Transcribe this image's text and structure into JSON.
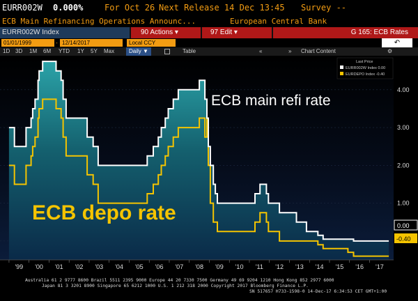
{
  "header": {
    "ticker": "EURR002W",
    "change": "0.000%",
    "date_text": "For Oct 26",
    "next_release": "Next Release 14 Dec 13:45",
    "survey": "Survey --",
    "description": "ECB Main Refinancing Operations Announc...",
    "source": "European Central Bank"
  },
  "toolbar": {
    "index_label": "EURR002W Index",
    "actions_label": "90 Actions ▾",
    "edit_label": "97 Edit ▾",
    "g_label": "G 165: ECB Rates",
    "start_date": "01/01/1999",
    "end_date": "12/14/2017",
    "currency": "Local CCY",
    "back_icon": "↶",
    "ranges": [
      "1D",
      "3D",
      "1M",
      "6M",
      "YTD",
      "1Y",
      "5Y",
      "Max"
    ],
    "frequency": "Daily ▼",
    "table_label": "Table",
    "chart_content_label": "Chart Content",
    "icons": [
      "bar-chart-icon",
      "double-left-icon",
      "double-right-icon",
      "gear-icon"
    ]
  },
  "legend": {
    "title": "Last Price",
    "items": [
      {
        "label": "EURR002W Index  0.00",
        "color": "#ffffff"
      },
      {
        "label": "EURDEPO Index  -0.40",
        "color": "#f5c400"
      }
    ]
  },
  "chart_data": {
    "type": "line",
    "x_ticks": [
      "'99",
      "'00",
      "'01",
      "'02",
      "'03",
      "'04",
      "'05",
      "'06",
      "'07",
      "'08",
      "'09",
      "'10",
      "'11",
      "'12",
      "'13",
      "'14",
      "'15",
      "'16",
      "'17"
    ],
    "y_ticks": [
      "4.00",
      "3.00",
      "2.00",
      "1.00",
      "0.00"
    ],
    "ylim": [
      -0.5,
      4.9
    ],
    "annotations": [
      "ECB main refi rate",
      "ECB depo rate"
    ],
    "last_values": [
      "0.00",
      "-0.40"
    ],
    "series": [
      {
        "name": "EURR002W Index",
        "color": "#ffffff",
        "points": [
          [
            1999.0,
            3.0
          ],
          [
            1999.27,
            2.5
          ],
          [
            1999.85,
            3.0
          ],
          [
            2000.1,
            3.25
          ],
          [
            2000.18,
            3.5
          ],
          [
            2000.3,
            3.75
          ],
          [
            2000.45,
            4.25
          ],
          [
            2000.5,
            4.5
          ],
          [
            2000.68,
            4.75
          ],
          [
            2001.35,
            4.5
          ],
          [
            2001.6,
            4.25
          ],
          [
            2001.7,
            3.75
          ],
          [
            2001.85,
            3.25
          ],
          [
            2002.9,
            2.75
          ],
          [
            2003.2,
            2.5
          ],
          [
            2003.45,
            2.0
          ],
          [
            2005.9,
            2.25
          ],
          [
            2006.2,
            2.5
          ],
          [
            2006.45,
            2.75
          ],
          [
            2006.6,
            3.0
          ],
          [
            2006.8,
            3.25
          ],
          [
            2006.95,
            3.5
          ],
          [
            2007.2,
            3.75
          ],
          [
            2007.45,
            4.0
          ],
          [
            2008.5,
            4.25
          ],
          [
            2008.78,
            3.75
          ],
          [
            2008.88,
            3.25
          ],
          [
            2008.95,
            2.5
          ],
          [
            2009.05,
            2.0
          ],
          [
            2009.2,
            1.5
          ],
          [
            2009.3,
            1.25
          ],
          [
            2009.4,
            1.0
          ],
          [
            2011.28,
            1.25
          ],
          [
            2011.53,
            1.5
          ],
          [
            2011.85,
            1.25
          ],
          [
            2011.95,
            1.0
          ],
          [
            2012.5,
            0.75
          ],
          [
            2013.35,
            0.5
          ],
          [
            2013.85,
            0.25
          ],
          [
            2014.42,
            0.15
          ],
          [
            2014.68,
            0.05
          ],
          [
            2016.2,
            0.0
          ],
          [
            2017.96,
            0.0
          ]
        ]
      },
      {
        "name": "EURDEPO Index",
        "color": "#f5c400",
        "points": [
          [
            1999.0,
            2.0
          ],
          [
            1999.27,
            1.5
          ],
          [
            1999.85,
            2.0
          ],
          [
            2000.1,
            2.25
          ],
          [
            2000.18,
            2.5
          ],
          [
            2000.3,
            2.75
          ],
          [
            2000.45,
            3.25
          ],
          [
            2000.5,
            3.5
          ],
          [
            2000.68,
            3.75
          ],
          [
            2001.35,
            3.5
          ],
          [
            2001.6,
            3.25
          ],
          [
            2001.7,
            2.75
          ],
          [
            2001.85,
            2.25
          ],
          [
            2002.9,
            1.75
          ],
          [
            2003.2,
            1.5
          ],
          [
            2003.45,
            1.0
          ],
          [
            2005.9,
            1.25
          ],
          [
            2006.2,
            1.5
          ],
          [
            2006.45,
            1.75
          ],
          [
            2006.6,
            2.0
          ],
          [
            2006.8,
            2.25
          ],
          [
            2006.95,
            2.5
          ],
          [
            2007.2,
            2.75
          ],
          [
            2007.45,
            3.0
          ],
          [
            2008.5,
            3.25
          ],
          [
            2008.78,
            2.75
          ],
          [
            2008.88,
            3.25
          ],
          [
            2008.95,
            2.0
          ],
          [
            2009.05,
            1.0
          ],
          [
            2009.2,
            0.5
          ],
          [
            2009.4,
            0.25
          ],
          [
            2011.28,
            0.5
          ],
          [
            2011.53,
            0.75
          ],
          [
            2011.85,
            0.5
          ],
          [
            2011.95,
            0.25
          ],
          [
            2012.5,
            0.0
          ],
          [
            2014.42,
            -0.1
          ],
          [
            2014.68,
            -0.2
          ],
          [
            2015.92,
            -0.3
          ],
          [
            2016.2,
            -0.4
          ],
          [
            2017.96,
            -0.4
          ]
        ]
      }
    ]
  },
  "footer": {
    "line1": "Australia 61 2 9777 8600 Brazil 5511 2395 9000 Europe 44 20 7330 7500 Germany 49 69 9204 1210 Hong Kong 852 2977 6000",
    "line2": "Japan 81 3 3201 8900        Singapore 65 6212 1000        U.S. 1 212 318 2000        Copyright 2017 Bloomberg Finance L.P.",
    "line3": "SN 517657 H733-1598-0 14-Dec-17  6:34:53 CET  GMT+1:00"
  }
}
